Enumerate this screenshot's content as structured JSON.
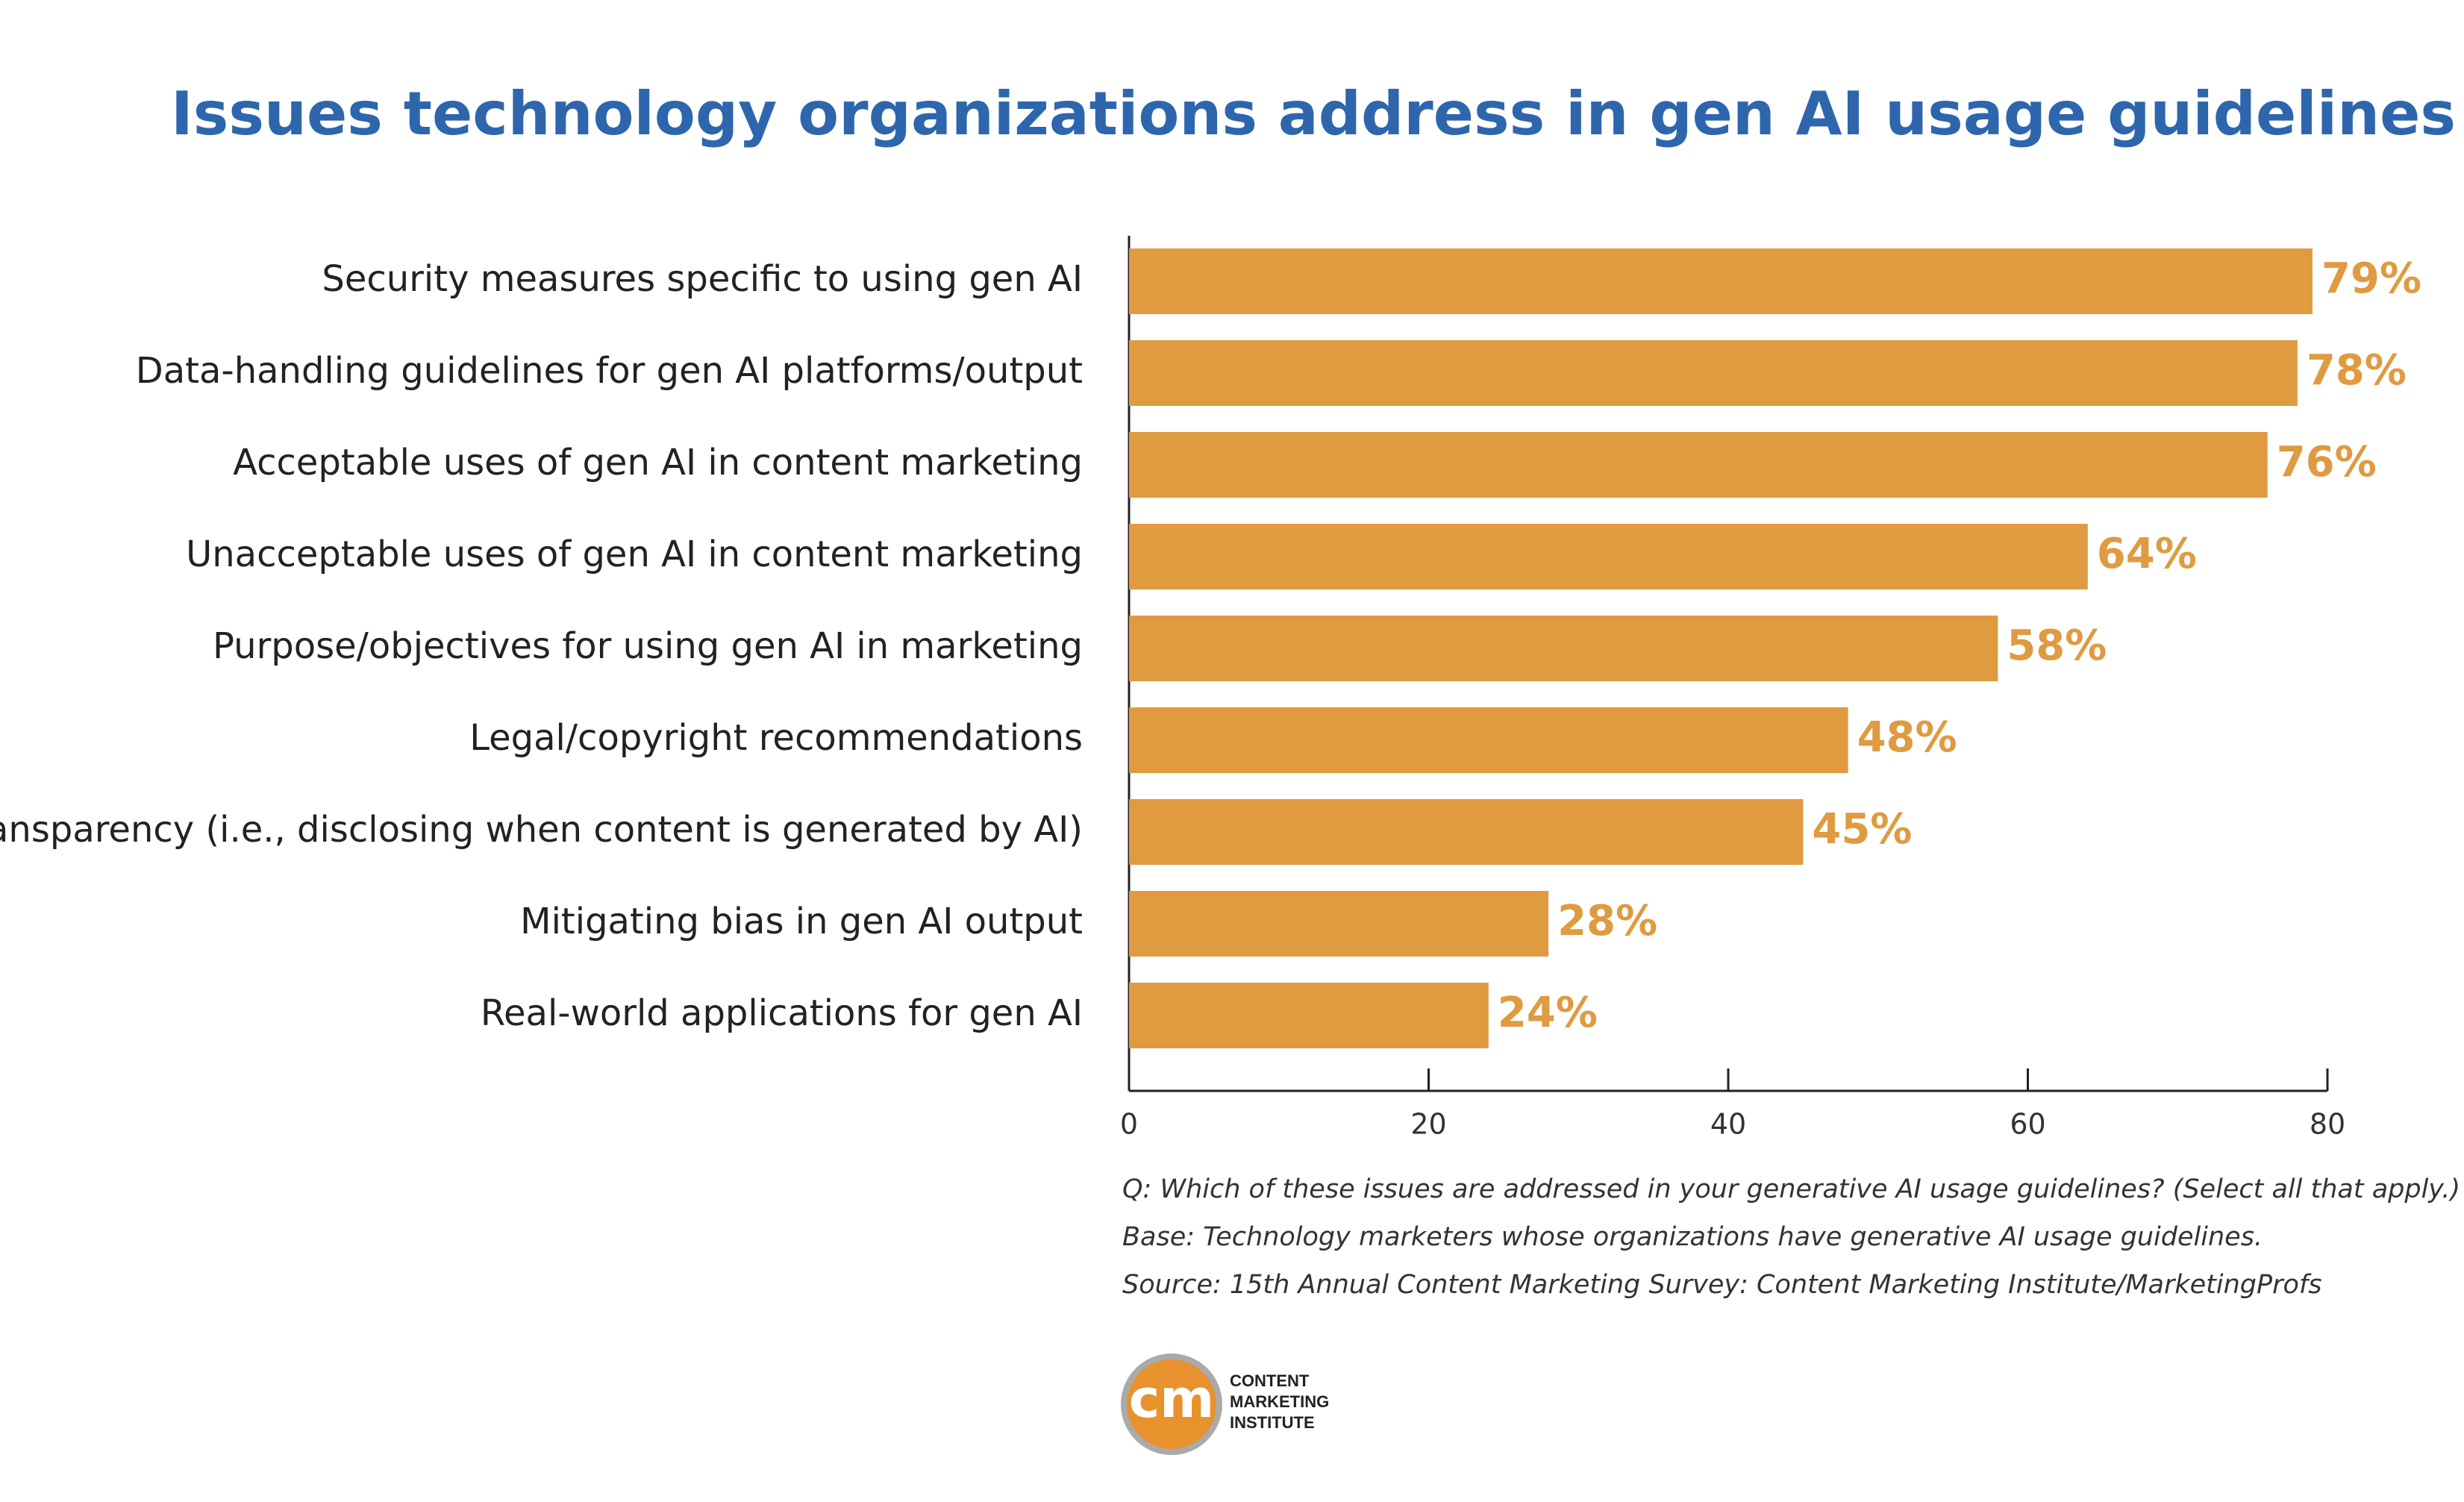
{
  "chart_data": {
    "type": "bar",
    "orientation": "horizontal",
    "title": "Issues technology organizations address in gen AI usage guidelines",
    "categories": [
      "Security measures specific to using gen AI",
      "Data-handling guidelines for gen AI platforms/output",
      "Acceptable uses of gen AI in content marketing",
      "Unacceptable uses of gen AI in content marketing",
      "Purpose/objectives for using gen AI in marketing",
      "Legal/copyright recommendations",
      "Transparency (i.e., disclosing when content is generated by AI)",
      "Mitigating bias in gen AI output",
      "Real-world applications for gen AI"
    ],
    "values": [
      79,
      78,
      76,
      64,
      58,
      48,
      45,
      28,
      24
    ],
    "value_labels": [
      "79%",
      "78%",
      "76%",
      "64%",
      "58%",
      "48%",
      "45%",
      "28%",
      "24%"
    ],
    "color": "#e09a40",
    "xlim": [
      0,
      80
    ],
    "xticks": [
      0,
      20,
      40,
      60,
      80
    ],
    "notes": [
      "Q: Which of these issues are addressed in your generative AI usage guidelines? (Select all that apply.)",
      "Base: Technology marketers whose organizations have generative AI usage guidelines.",
      "Source: 15th Annual Content Marketing Survey: Content Marketing Institute/MarketingProfs"
    ]
  },
  "logo": {
    "mark": "cm",
    "lines": [
      "CONTENT",
      "MARKETING",
      "INSTITUTE"
    ]
  }
}
